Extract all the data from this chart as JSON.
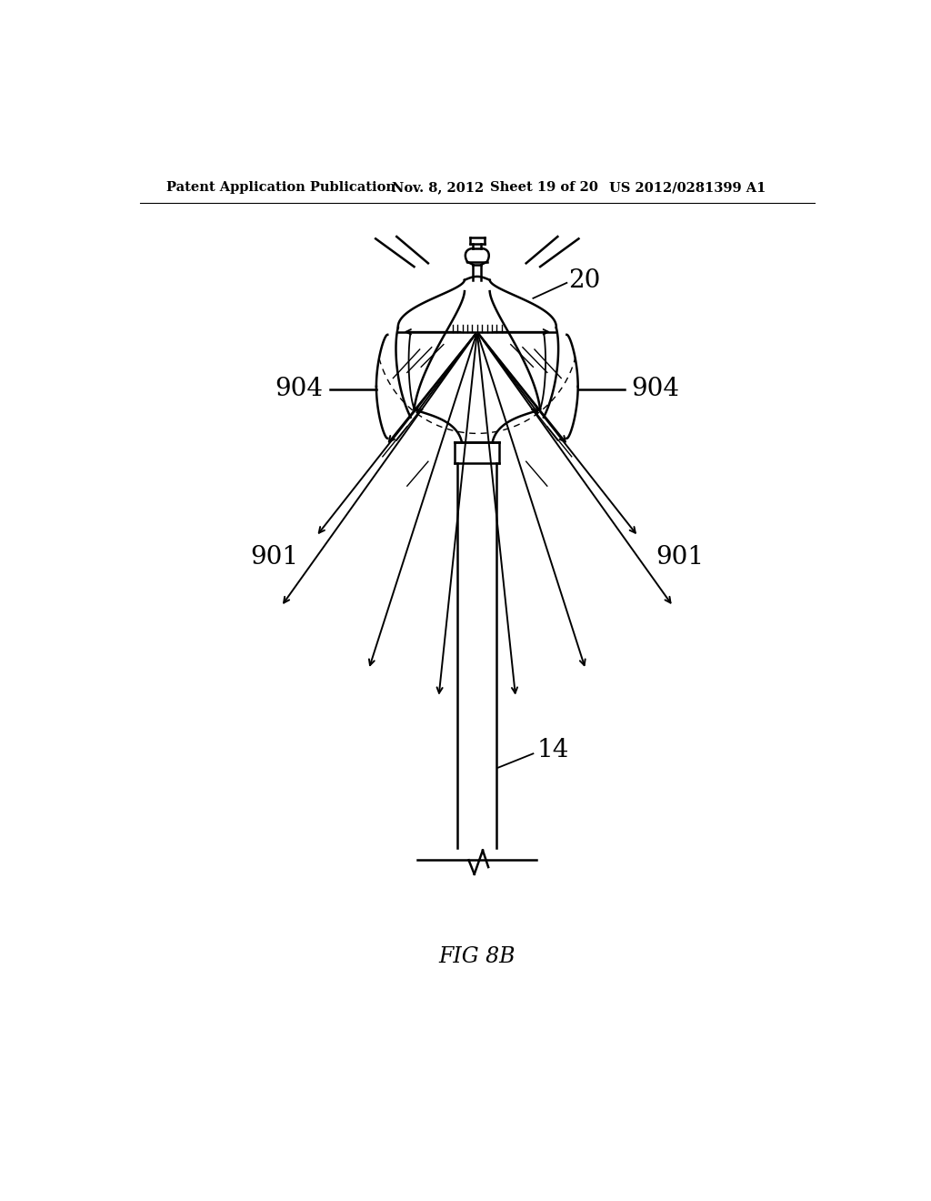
{
  "title_left": "Patent Application Publication",
  "title_mid": "Nov. 8, 2012   Sheet 19 of 20",
  "title_right": "US 2012/0281399 A1",
  "fig_label": "FIG 8B",
  "label_20": "20",
  "label_904_left": "904",
  "label_904_right": "904",
  "label_901_left": "901",
  "label_901_right": "901",
  "label_14": "14",
  "bg_color": "#ffffff",
  "line_color": "#000000"
}
